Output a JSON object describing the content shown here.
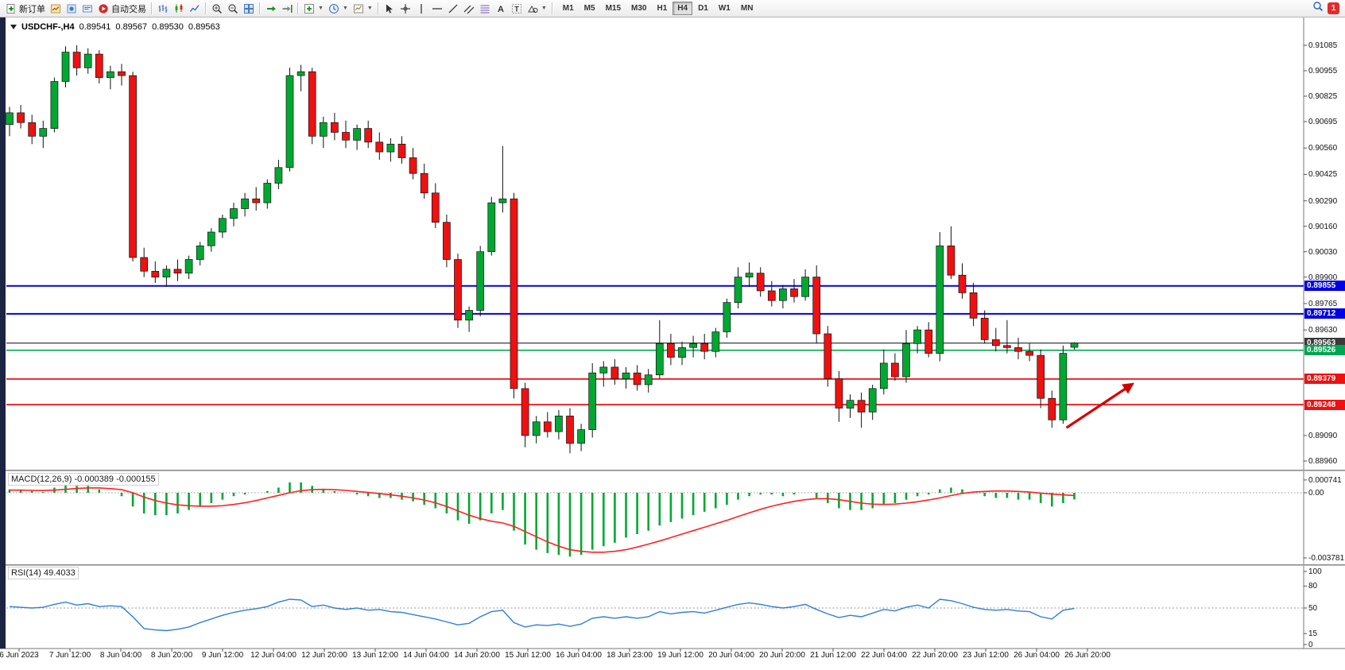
{
  "toolbar": {
    "new_order_label": "新订单",
    "auto_trading_label": "自动交易",
    "timeframes": [
      "M1",
      "M5",
      "M15",
      "M30",
      "H1",
      "H4",
      "D1",
      "W1",
      "MN"
    ],
    "active_timeframe": "H4",
    "notification_count": "1"
  },
  "chart_header": {
    "symbol_period": "USDCHF-,H4",
    "open": "0.89541",
    "high": "0.89567",
    "low": "0.89530",
    "close": "0.89563"
  },
  "indicators": {
    "macd_label": "MACD(12,26,9)",
    "macd_values": "-0.000389 -0.000155",
    "rsi_label": "RSI(14)",
    "rsi_value": "49.4033"
  },
  "chart_data": {
    "symbol": "USDCHF-",
    "timeframe": "H4",
    "x_labels": [
      "6 Jun 2023",
      "7 Jun 12:00",
      "8 Jun 04:00",
      "8 Jun 20:00",
      "9 Jun 12:00",
      "12 Jun 04:00",
      "12 Jun 20:00",
      "13 Jun 12:00",
      "14 Jun 04:00",
      "14 Jun 20:00",
      "15 Jun 12:00",
      "16 Jun 04:00",
      "18 Jun 23:00",
      "19 Jun 12:00",
      "20 Jun 04:00",
      "20 Jun 20:00",
      "21 Jun 12:00",
      "22 Jun 04:00",
      "22 Jun 20:00",
      "23 Jun 12:00",
      "26 Jun 04:00",
      "26 Jun 20:00"
    ],
    "price_chart": {
      "type": "candlestick",
      "ylim": [
        0.8896,
        0.91085
      ],
      "y_ticks": [
        "0.91085",
        "0.90955",
        "0.90825",
        "0.90695",
        "0.90560",
        "0.90425",
        "0.90290",
        "0.90160",
        "0.90030",
        "0.89900",
        "0.89765",
        "0.89630",
        "0.89090",
        "0.88960"
      ],
      "colors": {
        "up": "#00A832",
        "down": "#EE1111",
        "wick": "#111111"
      },
      "candles": [
        [
          0.9068,
          0.9077,
          0.9062,
          0.9074
        ],
        [
          0.9074,
          0.9078,
          0.9066,
          0.9069
        ],
        [
          0.9069,
          0.9073,
          0.9058,
          0.9062
        ],
        [
          0.9062,
          0.907,
          0.9056,
          0.9066
        ],
        [
          0.9066,
          0.9092,
          0.9064,
          0.909
        ],
        [
          0.909,
          0.9108,
          0.9087,
          0.9105
        ],
        [
          0.9105,
          0.91085,
          0.9093,
          0.9097
        ],
        [
          0.9097,
          0.9107,
          0.9094,
          0.9104
        ],
        [
          0.9104,
          0.9106,
          0.9089,
          0.9092
        ],
        [
          0.9092,
          0.9098,
          0.9086,
          0.9095
        ],
        [
          0.9095,
          0.9099,
          0.9088,
          0.9093
        ],
        [
          0.9093,
          0.9095,
          0.8998,
          0.9
        ],
        [
          0.9,
          0.9005,
          0.899,
          0.8993
        ],
        [
          0.8993,
          0.8998,
          0.8987,
          0.899
        ],
        [
          0.899,
          0.8996,
          0.8985,
          0.8994
        ],
        [
          0.8994,
          0.8999,
          0.8988,
          0.8992
        ],
        [
          0.8992,
          0.9001,
          0.8989,
          0.8999
        ],
        [
          0.8999,
          0.9008,
          0.8996,
          0.9006
        ],
        [
          0.9006,
          0.9015,
          0.9003,
          0.9013
        ],
        [
          0.9013,
          0.9022,
          0.901,
          0.902
        ],
        [
          0.902,
          0.9028,
          0.9016,
          0.9025
        ],
        [
          0.9025,
          0.9033,
          0.9021,
          0.903
        ],
        [
          0.903,
          0.9036,
          0.9024,
          0.9028
        ],
        [
          0.9028,
          0.904,
          0.9025,
          0.9038
        ],
        [
          0.9038,
          0.905,
          0.9035,
          0.9046
        ],
        [
          0.9046,
          0.9097,
          0.9044,
          0.9093
        ],
        [
          0.9093,
          0.90985,
          0.9085,
          0.9095
        ],
        [
          0.9095,
          0.9097,
          0.9058,
          0.9062
        ],
        [
          0.9062,
          0.9072,
          0.9056,
          0.9069
        ],
        [
          0.9069,
          0.9074,
          0.906,
          0.9064
        ],
        [
          0.9064,
          0.907,
          0.9056,
          0.906
        ],
        [
          0.906,
          0.9068,
          0.9055,
          0.9066
        ],
        [
          0.9066,
          0.907,
          0.9056,
          0.9059
        ],
        [
          0.9059,
          0.9064,
          0.905,
          0.9054
        ],
        [
          0.9054,
          0.9061,
          0.9049,
          0.9058
        ],
        [
          0.9058,
          0.9062,
          0.9048,
          0.9051
        ],
        [
          0.9051,
          0.9056,
          0.904,
          0.9043
        ],
        [
          0.9043,
          0.9048,
          0.903,
          0.9033
        ],
        [
          0.9033,
          0.9038,
          0.9015,
          0.9018
        ],
        [
          0.9018,
          0.9022,
          0.8995,
          0.8999
        ],
        [
          0.8999,
          0.9002,
          0.8964,
          0.8968
        ],
        [
          0.8968,
          0.8975,
          0.8962,
          0.8973
        ],
        [
          0.8973,
          0.9006,
          0.897,
          0.9003
        ],
        [
          0.9003,
          0.9031,
          0.9001,
          0.9028
        ],
        [
          0.9028,
          0.9057,
          0.9023,
          0.903
        ],
        [
          0.903,
          0.9033,
          0.8928,
          0.8933
        ],
        [
          0.8933,
          0.8936,
          0.8903,
          0.8909
        ],
        [
          0.8909,
          0.8919,
          0.8905,
          0.8916
        ],
        [
          0.8916,
          0.8921,
          0.8908,
          0.8911
        ],
        [
          0.8911,
          0.8922,
          0.8907,
          0.8919
        ],
        [
          0.8919,
          0.8923,
          0.89,
          0.8905
        ],
        [
          0.8905,
          0.8915,
          0.8901,
          0.8912
        ],
        [
          0.8912,
          0.8946,
          0.8908,
          0.8941
        ],
        [
          0.8941,
          0.8947,
          0.8934,
          0.8944
        ],
        [
          0.8944,
          0.8948,
          0.8935,
          0.8938
        ],
        [
          0.8938,
          0.8944,
          0.8933,
          0.8941
        ],
        [
          0.8941,
          0.8945,
          0.8932,
          0.8935
        ],
        [
          0.8935,
          0.8943,
          0.8931,
          0.894
        ],
        [
          0.894,
          0.8968,
          0.8938,
          0.8956
        ],
        [
          0.8956,
          0.8961,
          0.8945,
          0.8949
        ],
        [
          0.8949,
          0.8957,
          0.8945,
          0.8954
        ],
        [
          0.8954,
          0.896,
          0.8949,
          0.8956
        ],
        [
          0.8956,
          0.8961,
          0.8948,
          0.8952
        ],
        [
          0.8952,
          0.8964,
          0.8949,
          0.8962
        ],
        [
          0.8962,
          0.8979,
          0.8959,
          0.8977
        ],
        [
          0.8977,
          0.8995,
          0.8974,
          0.899
        ],
        [
          0.899,
          0.89975,
          0.8985,
          0.8992
        ],
        [
          0.8992,
          0.8995,
          0.898,
          0.8983
        ],
        [
          0.8983,
          0.8988,
          0.8975,
          0.8978
        ],
        [
          0.8978,
          0.8986,
          0.8974,
          0.8984
        ],
        [
          0.8984,
          0.8989,
          0.8977,
          0.898
        ],
        [
          0.898,
          0.8994,
          0.8978,
          0.899
        ],
        [
          0.899,
          0.8996,
          0.8956,
          0.8961
        ],
        [
          0.8961,
          0.8965,
          0.8934,
          0.8938
        ],
        [
          0.8938,
          0.8942,
          0.8916,
          0.8923
        ],
        [
          0.8923,
          0.893,
          0.8918,
          0.8927
        ],
        [
          0.8927,
          0.8931,
          0.8913,
          0.8921
        ],
        [
          0.8921,
          0.8935,
          0.8917,
          0.8933
        ],
        [
          0.8933,
          0.8953,
          0.893,
          0.8946
        ],
        [
          0.8946,
          0.8951,
          0.8937,
          0.8939
        ],
        [
          0.8939,
          0.8963,
          0.8936,
          0.8956
        ],
        [
          0.8956,
          0.8965,
          0.8951,
          0.8963
        ],
        [
          0.8963,
          0.8967,
          0.8949,
          0.8951
        ],
        [
          0.8951,
          0.9013,
          0.8947,
          0.9006
        ],
        [
          0.9006,
          0.9016,
          0.8989,
          0.8991
        ],
        [
          0.8991,
          0.8997,
          0.8979,
          0.8982
        ],
        [
          0.8982,
          0.8987,
          0.8965,
          0.8969
        ],
        [
          0.8969,
          0.8973,
          0.8956,
          0.8958
        ],
        [
          0.8958,
          0.8964,
          0.8952,
          0.8955
        ],
        [
          0.8955,
          0.8968,
          0.8951,
          0.8954
        ],
        [
          0.8954,
          0.8959,
          0.8948,
          0.8952
        ],
        [
          0.8952,
          0.8956,
          0.8947,
          0.895
        ],
        [
          0.895,
          0.8953,
          0.8923,
          0.8928
        ],
        [
          0.8928,
          0.8932,
          0.8913,
          0.8917
        ],
        [
          0.8917,
          0.8955,
          0.8915,
          0.8951
        ],
        [
          0.89541,
          0.89567,
          0.8953,
          0.89563
        ]
      ],
      "hlines": [
        {
          "name": "resistance-line-1",
          "price": 0.89855,
          "color": "#0000E8",
          "width": 2
        },
        {
          "name": "resistance-line-2",
          "price": 0.89712,
          "color": "#0000E8",
          "width": 2
        },
        {
          "name": "current-price-line",
          "price": 0.89563,
          "color": "#3A3A3A",
          "width": 1.2
        },
        {
          "name": "support-line-green",
          "price": 0.89526,
          "color": "#00A651",
          "width": 1.6
        },
        {
          "name": "support-line-red-1",
          "price": 0.89379,
          "color": "#EE1111",
          "width": 1.8
        },
        {
          "name": "support-line-red-2",
          "price": 0.89248,
          "color": "#EE1111",
          "width": 1.8
        }
      ],
      "arrow": {
        "i1": 94.3,
        "p1": 0.8913,
        "i2": 100.1,
        "p2": 0.8935,
        "color": "#D40000"
      }
    },
    "macd": {
      "type": "bar+line",
      "params": "12,26,9",
      "y_ticks": [
        "0.000741",
        "0.00",
        "-0.003781"
      ],
      "colors": {
        "hist": "#00A832",
        "signal": "#FF2222"
      },
      "hist": [
        0.0002,
        0.00015,
        0.0001,
        5e-05,
        0.0003,
        0.0005,
        0.0004,
        0.0004,
        0.0002,
        0.0,
        -0.0002,
        -0.0008,
        -0.0012,
        -0.0013,
        -0.0013,
        -0.0012,
        -0.001,
        -0.0008,
        -0.0006,
        -0.0004,
        -0.0002,
        -0.0001,
        0.0,
        0.0001,
        0.0003,
        0.0006,
        0.0006,
        0.0004,
        0.0002,
        0.0001,
        0.0,
        -0.0001,
        -0.0002,
        -0.0003,
        -0.0003,
        -0.0004,
        -0.0005,
        -0.0007,
        -0.0009,
        -0.0012,
        -0.0016,
        -0.0018,
        -0.0016,
        -0.0012,
        -0.001,
        -0.0022,
        -0.003,
        -0.0033,
        -0.0035,
        -0.0036,
        -0.0037,
        -0.0036,
        -0.0033,
        -0.0031,
        -0.0029,
        -0.0026,
        -0.0024,
        -0.0022,
        -0.0019,
        -0.0017,
        -0.0015,
        -0.0013,
        -0.0011,
        -0.0009,
        -0.0007,
        -0.0004,
        -0.0002,
        -0.0001,
        -0.0001,
        -0.0002,
        -0.0001,
        0.0,
        -0.0003,
        -0.0006,
        -0.0009,
        -0.001,
        -0.001,
        -0.0009,
        -0.0007,
        -0.0006,
        -0.0004,
        -0.0002,
        -0.0001,
        0.0002,
        0.0003,
        0.0002,
        0.0,
        -0.0002,
        -0.0003,
        -0.0003,
        -0.0004,
        -0.0004,
        -0.0006,
        -0.0008,
        -0.0006,
        -0.000389
      ],
      "signal": [
        0.00015,
        0.00015,
        0.00014,
        0.00013,
        0.00015,
        0.0002,
        0.00025,
        0.00028,
        0.00028,
        0.00024,
        0.00018,
        0.0,
        -0.00025,
        -0.00045,
        -0.0006,
        -0.0007,
        -0.00075,
        -0.00078,
        -0.00078,
        -0.00075,
        -0.00068,
        -0.00058,
        -0.00045,
        -0.0003,
        -0.00015,
        0.0,
        0.00012,
        0.00018,
        0.0002,
        0.00018,
        0.00014,
        8e-05,
        2e-05,
        -5e-05,
        -0.00012,
        -0.0002,
        -0.0003,
        -0.00042,
        -0.00058,
        -0.0008,
        -0.00105,
        -0.0013,
        -0.0015,
        -0.00165,
        -0.00175,
        -0.00195,
        -0.00225,
        -0.00255,
        -0.00285,
        -0.0031,
        -0.0033,
        -0.0034,
        -0.00345,
        -0.00345,
        -0.0034,
        -0.0033,
        -0.00315,
        -0.00298,
        -0.0028,
        -0.0026,
        -0.0024,
        -0.0022,
        -0.002,
        -0.0018,
        -0.0016,
        -0.00138,
        -0.00116,
        -0.00096,
        -0.00078,
        -0.00063,
        -0.0005,
        -0.0004,
        -0.00034,
        -0.00034,
        -0.0004,
        -0.0005,
        -0.0006,
        -0.00066,
        -0.00068,
        -0.00066,
        -0.0006,
        -0.00052,
        -0.00042,
        -0.0003,
        -0.00016,
        -4e-05,
        4e-05,
        8e-05,
        0.0001,
        0.0001,
        8e-05,
        4e-05,
        -2e-05,
        -8e-05,
        -0.00012,
        -0.000155
      ]
    },
    "rsi": {
      "type": "line",
      "period": 14,
      "color": "#2F7ED8",
      "levels": [
        50
      ],
      "y_ticks": [
        "100",
        "80",
        "50",
        "15",
        "0"
      ],
      "values": [
        52,
        51,
        50,
        51,
        55,
        58,
        54,
        56,
        52,
        53,
        52,
        38,
        22,
        20,
        19,
        21,
        24,
        30,
        35,
        40,
        44,
        47,
        49,
        52,
        58,
        62,
        61,
        52,
        54,
        50,
        48,
        50,
        47,
        48,
        45,
        44,
        41,
        38,
        35,
        31,
        27,
        29,
        38,
        45,
        47,
        30,
        24,
        27,
        26,
        28,
        25,
        28,
        36,
        38,
        36,
        38,
        36,
        38,
        45,
        42,
        44,
        45,
        43,
        47,
        51,
        55,
        57,
        55,
        52,
        50,
        52,
        55,
        48,
        42,
        37,
        40,
        38,
        43,
        48,
        46,
        51,
        54,
        50,
        62,
        60,
        56,
        51,
        48,
        47,
        48,
        46,
        45,
        38,
        35,
        47,
        49.4
      ]
    }
  }
}
